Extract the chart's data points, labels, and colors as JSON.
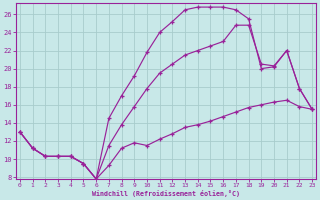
{
  "bg_color": "#c8e8e8",
  "grid_color": "#a8cccc",
  "line_color": "#992299",
  "xlabel": "Windchill (Refroidissement éolien,°C)",
  "xlim": [
    -0.3,
    23.3
  ],
  "ylim": [
    7.8,
    27.2
  ],
  "xticks": [
    0,
    1,
    2,
    3,
    4,
    5,
    6,
    7,
    8,
    9,
    10,
    11,
    12,
    13,
    14,
    15,
    16,
    17,
    18,
    19,
    20,
    21,
    22,
    23
  ],
  "yticks": [
    8,
    10,
    12,
    14,
    16,
    18,
    20,
    22,
    24,
    26
  ],
  "line1_x": [
    0,
    1,
    2,
    3,
    4,
    5,
    6,
    7,
    8,
    9,
    10,
    11,
    12,
    13,
    14,
    15,
    16,
    17,
    18,
    19,
    20,
    21,
    22,
    23
  ],
  "line1_y": [
    13.0,
    11.2,
    10.3,
    10.3,
    10.3,
    9.5,
    7.8,
    9.3,
    11.2,
    11.8,
    11.5,
    12.2,
    12.8,
    13.5,
    13.8,
    14.2,
    14.7,
    15.2,
    15.7,
    16.0,
    16.3,
    16.5,
    15.8,
    15.5
  ],
  "line2_x": [
    0,
    1,
    2,
    3,
    4,
    5,
    6,
    7,
    8,
    9,
    10,
    11,
    12,
    13,
    14,
    15,
    16,
    17,
    18,
    19,
    20,
    21,
    22,
    23
  ],
  "line2_y": [
    13.0,
    11.2,
    10.3,
    10.3,
    10.3,
    9.5,
    7.8,
    14.5,
    17.0,
    19.2,
    21.8,
    24.0,
    25.2,
    26.5,
    26.8,
    26.8,
    26.8,
    26.5,
    25.5,
    20.0,
    20.2,
    22.0,
    17.8,
    15.5
  ],
  "line3_x": [
    0,
    1,
    2,
    3,
    4,
    5,
    6,
    7,
    8,
    9,
    10,
    11,
    12,
    13,
    14,
    15,
    16,
    17,
    18,
    19,
    20,
    21,
    22,
    23
  ],
  "line3_y": [
    13.0,
    11.2,
    10.3,
    10.3,
    10.3,
    9.5,
    7.8,
    11.5,
    13.8,
    15.8,
    17.8,
    19.5,
    20.5,
    21.5,
    22.0,
    22.5,
    23.0,
    24.8,
    24.8,
    20.5,
    20.3,
    22.0,
    17.8,
    15.5
  ]
}
